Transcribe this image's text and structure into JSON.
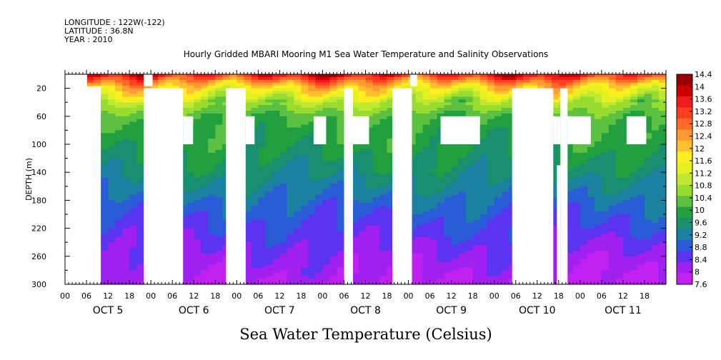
{
  "header": {
    "longitude": "LONGITUDE : 122W(-122)",
    "latitude": "LATITUDE : 36.8N",
    "year": "YEAR : 2010"
  },
  "chart_data": {
    "type": "heatmap",
    "title": "Hourly Gridded MBARI Mooring M1 Sea Water Temperature and Salinity Observations",
    "xlabel": "",
    "ylabel": "DEPTH (m)",
    "footer_title": "Sea Water Temperature (Celsius)",
    "ylim": [
      300,
      0
    ],
    "y_ticks": [
      20,
      60,
      100,
      140,
      180,
      220,
      260,
      300
    ],
    "x_hour_labels": [
      "00",
      "06",
      "12",
      "18"
    ],
    "days": [
      "OCT 5",
      "OCT 6",
      "OCT 7",
      "OCT 8",
      "OCT 9",
      "OCT 10",
      "OCT 11"
    ],
    "colorbar": {
      "min": 7.6,
      "max": 14.4,
      "labels": [
        "14.4",
        "14",
        "13.6",
        "13.2",
        "12.8",
        "12.4",
        "12",
        "11.6",
        "11.2",
        "10.8",
        "10.4",
        "10",
        "9.6",
        "9.2",
        "8.8",
        "8.4",
        "8",
        "7.6"
      ],
      "colors": [
        "#990000",
        "#cc0000",
        "#ee1c1c",
        "#ff4020",
        "#ff6a28",
        "#ff9a30",
        "#ffc030",
        "#ffee20",
        "#e4f020",
        "#c0e830",
        "#98dc30",
        "#5cc040",
        "#22a040",
        "#189070",
        "#1c80a0",
        "#2a5cd8",
        "#5a34f0",
        "#a020f0",
        "#c020f0"
      ]
    },
    "temperature_profile": {
      "depths": [
        0,
        10,
        20,
        40,
        60,
        80,
        100,
        140,
        180,
        220,
        260,
        300
      ],
      "values": [
        13.6,
        12.6,
        11.8,
        10.8,
        10.2,
        10.0,
        9.9,
        9.5,
        9.0,
        8.6,
        8.2,
        7.9
      ]
    }
  }
}
